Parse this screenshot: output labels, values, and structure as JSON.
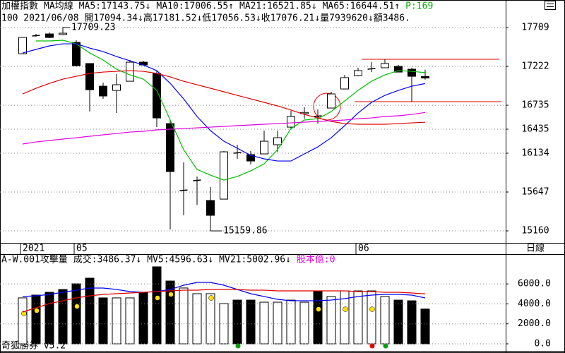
{
  "quote": "100 2021/06/08 開17094.34↓高17181.52↓低17056.53↓收17076.21↓量7939620↓額3486.",
  "period": "日線",
  "footer": "奇狐勝券 v5.2",
  "chart_data": [
    {
      "type": "candlestick",
      "title": "加權指數",
      "subtitle": "MA均線",
      "note": "P:169",
      "categories": [
        "2021",
        null,
        null,
        null,
        "05",
        null,
        null,
        null,
        null,
        null,
        null,
        null,
        null,
        null,
        null,
        null,
        null,
        null,
        null,
        null,
        null,
        null,
        null,
        null,
        null,
        "06",
        null,
        null,
        null,
        null,
        null
      ],
      "open": [
        17381,
        17603,
        17629,
        17621,
        17523,
        17258,
        16974,
        16921,
        17036,
        17275,
        17134,
        16505,
        15665,
        15789,
        15541,
        15558,
        16134,
        16116,
        16125,
        16240,
        16461,
        16630,
        16594,
        16700,
        16939,
        17107,
        17187,
        17205,
        17222,
        17187,
        17094.34
      ],
      "high": [
        17585,
        17630,
        17647,
        17709.23,
        17550,
        17258,
        17019,
        17125,
        17302,
        17293,
        17169,
        16550,
        16019,
        15842,
        15709,
        16160,
        16240,
        16160,
        16417,
        16417,
        16665,
        16709,
        16682,
        16904,
        17116,
        17205,
        17275,
        17311,
        17240,
        17205,
        17181.52
      ],
      "low": [
        17381,
        17594,
        17576,
        17612,
        17222,
        16656,
        16815,
        16638,
        17036,
        17231,
        16461,
        15178,
        15355,
        15488,
        15159.86,
        15558,
        16063,
        15992,
        16125,
        16151,
        16435,
        16567,
        16505,
        16700,
        16939,
        17098,
        17151,
        17205,
        17151,
        16780,
        17056.53
      ],
      "close": [
        17585,
        17612,
        17585,
        17638,
        17231,
        16930,
        16851,
        16992,
        17275,
        17240,
        16576,
        15904,
        15673,
        15798,
        15355,
        16151,
        16143,
        16036,
        16284,
        16328,
        16594,
        16645,
        16603,
        16877,
        17081,
        17169,
        17196,
        17258,
        17151,
        17098,
        17076.21
      ],
      "series": [
        {
          "name": "MA5:17143.75↓",
          "color": "#00c000",
          "values": [
            null,
            17541,
            17541,
            17550,
            17505,
            17390,
            17302,
            17187,
            17116,
            17063,
            16921,
            16550,
            16178,
            15930,
            15859,
            15797,
            15842,
            15912,
            16001,
            16178,
            16443,
            16550,
            16567,
            16656,
            16789,
            16921,
            17036,
            17116,
            17169,
            17160,
            17143.75
          ]
        },
        {
          "name": "MA10:17006.55↑",
          "color": "#0000ff",
          "values": [
            17390,
            17435,
            17479,
            17505,
            17505,
            17452,
            17408,
            17346,
            17293,
            17240,
            17169,
            17010,
            16815,
            16594,
            16417,
            16284,
            16196,
            16107,
            16063,
            16036,
            16036,
            16125,
            16213,
            16328,
            16479,
            16638,
            16771,
            16859,
            16921,
            16974,
            17006.55
          ]
        },
        {
          "name": "MA21:16521.85↓",
          "color": "#e00000",
          "values": [
            16877,
            16948,
            17010,
            17063,
            17098,
            17134,
            17151,
            17160,
            17169,
            17160,
            17134,
            17090,
            17036,
            16992,
            16948,
            16904,
            16859,
            16815,
            16771,
            16727,
            16674,
            16620,
            16576,
            16532,
            16505,
            16497,
            16497,
            16497,
            16505,
            16514,
            16521.85
          ]
        },
        {
          "name": "MA65:16644.51↑",
          "color": "#e000e0",
          "values": [
            16249,
            16275,
            16293,
            16311,
            16328,
            16346,
            16364,
            16381,
            16399,
            16408,
            16426,
            16435,
            16443,
            16452,
            16461,
            16470,
            16479,
            16488,
            16497,
            16505,
            16514,
            16523,
            16532,
            16541,
            16550,
            16567,
            16576,
            16594,
            16603,
            16620,
            16644.51
          ]
        }
      ],
      "ylim": [
        15001,
        17904
      ],
      "yticks": [
        17709,
        17222,
        16735,
        16435,
        16134,
        15647,
        15160
      ],
      "grid": true
    },
    {
      "type": "volume",
      "title": "A-W.001攻擊量",
      "note": "股本億:0",
      "series": [
        {
          "name": "成交:3486.37↓",
          "color": "#00c000",
          "colors": [
            "#ffffff",
            "#000000",
            "#000000",
            "#000000",
            "#000000",
            "#000000",
            "#000000",
            "#ffffff",
            "#ffffff",
            "#000000",
            "#000000",
            "#000000",
            "#ffffff",
            "#ffffff",
            "#ffffff",
            "#ffffff",
            "#000000",
            "#000000",
            "#ffffff",
            "#ffffff",
            "#ffffff",
            "#ffffff",
            "#000000",
            "#ffffff",
            "#ffffff",
            "#ffffff",
            "#ffffff",
            "#ffffff",
            "#000000",
            "#000000",
            "#000000"
          ],
          "values": [
            4600,
            4880,
            5160,
            5440,
            6010,
            6575,
            4600,
            4600,
            4600,
            5160,
            7710,
            6290,
            5590,
            5020,
            5020,
            4030,
            4380,
            4380,
            4170,
            4170,
            4380,
            4170,
            5300,
            4740,
            5300,
            5300,
            5300,
            4740,
            4380,
            4310,
            3486.37
          ]
        },
        {
          "name": "MV5:4596.63↓",
          "color": "#0000ff",
          "values": [
            4737,
            4808,
            4949,
            5161,
            5373,
            5585,
            5585,
            5444,
            5232,
            5161,
            5232,
            5444,
            5868,
            6151,
            6151,
            5868,
            5444,
            5020,
            4737,
            4454,
            4313,
            4313,
            4313,
            4383,
            4525,
            4737,
            4878,
            4949,
            4949,
            4878,
            4596.63
          ]
        },
        {
          "name": "MV21:5002.96↓",
          "color": "#e00000",
          "values": [
            3182,
            3606,
            4030,
            4313,
            4596,
            4808,
            4949,
            5020,
            5090,
            5161,
            5232,
            5303,
            5373,
            5373,
            5444,
            5444,
            5444,
            5373,
            5373,
            5303,
            5303,
            5303,
            5303,
            5303,
            5303,
            5232,
            5232,
            5161,
            5161,
            5090,
            5002.96
          ]
        }
      ],
      "ylim": [
        -707,
        8838
      ],
      "yticks": [
        {
          "value": 6000,
          "label": "6000.0"
        },
        {
          "value": 4000,
          "label": "4000.0"
        },
        {
          "value": 2000,
          "label": "2000.0"
        },
        {
          "value": 0,
          "label": "0.0"
        }
      ],
      "grid": true
    }
  ]
}
